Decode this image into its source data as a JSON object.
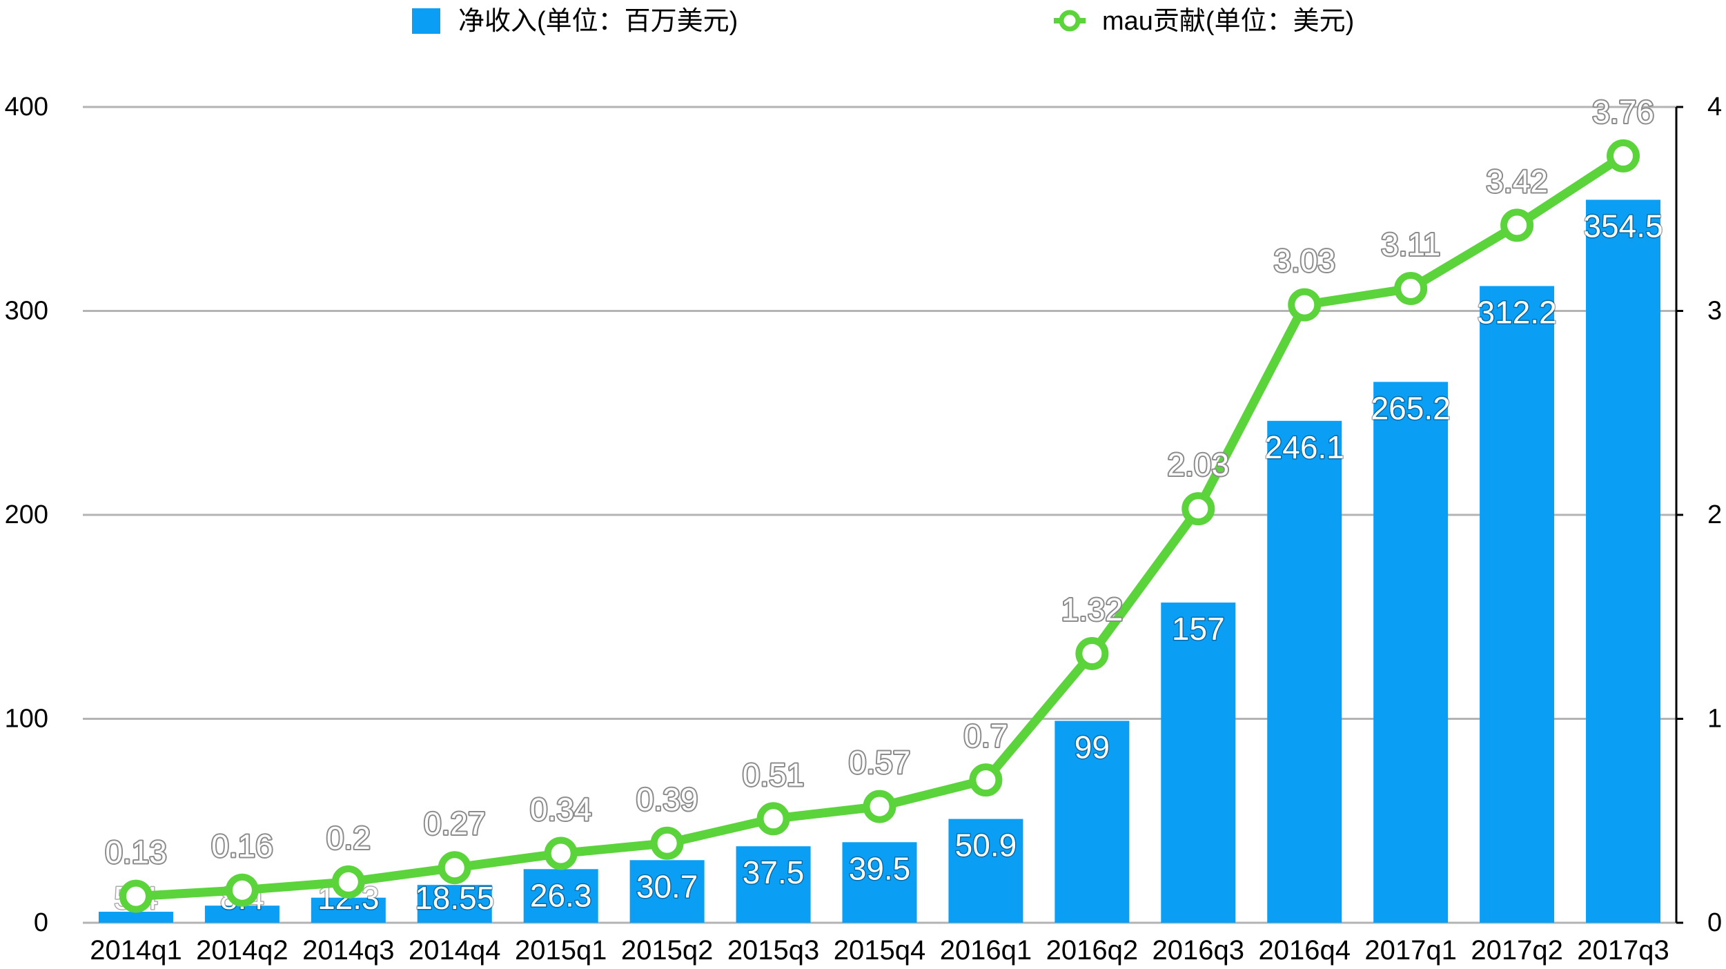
{
  "chart_data": {
    "type": "bar",
    "categories": [
      "2014q1",
      "2014q2",
      "2014q3",
      "2014q4",
      "2015q1",
      "2015q2",
      "2015q3",
      "2015q4",
      "2016q1",
      "2016q2",
      "2016q3",
      "2016q4",
      "2017q1",
      "2017q2",
      "2017q3"
    ],
    "series": [
      {
        "name": "净收入(单位：百万美元)",
        "type": "bar",
        "axis": "left",
        "color": "#0a9ff5",
        "values": [
          5.4,
          8.4,
          12.3,
          18.55,
          26.3,
          30.7,
          37.5,
          39.5,
          50.9,
          99,
          157,
          246.1,
          265.2,
          312.2,
          354.5
        ]
      },
      {
        "name": "mau贡献(单位：美元)",
        "type": "line",
        "axis": "right",
        "color": "#5bd43b",
        "values": [
          0.13,
          0.16,
          0.2,
          0.27,
          0.34,
          0.39,
          0.51,
          0.57,
          0.7,
          1.32,
          2.03,
          3.03,
          3.11,
          3.42,
          3.76
        ]
      }
    ],
    "ylim": [
      0,
      400
    ],
    "y2lim": [
      0,
      4
    ],
    "yticks": [
      0,
      100,
      200,
      300,
      400
    ],
    "y2ticks": [
      0,
      1,
      2,
      3,
      4
    ],
    "grid": true,
    "legend_position": "top",
    "data_labels": true
  }
}
